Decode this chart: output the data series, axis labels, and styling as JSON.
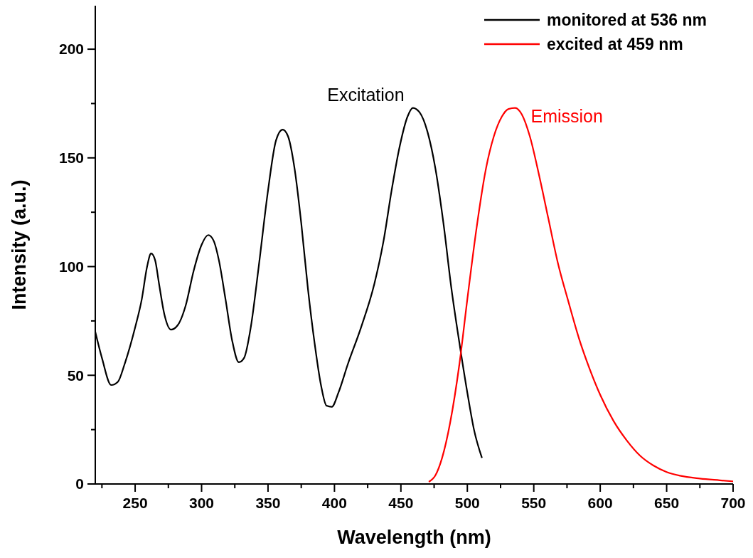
{
  "chart_data": {
    "type": "line",
    "xlabel": "Wavelength (nm)",
    "ylabel": "Intensity (a.u.)",
    "xlim": [
      220,
      700
    ],
    "ylim": [
      0,
      220
    ],
    "xticks": [
      {
        "value": 225,
        "label": null
      },
      250,
      {
        "value": 275,
        "label": null
      },
      300,
      {
        "value": 325,
        "label": null
      },
      350,
      {
        "value": 375,
        "label": null
      },
      400,
      {
        "value": 425,
        "label": null
      },
      450,
      {
        "value": 475,
        "label": null
      },
      500,
      {
        "value": 525,
        "label": null
      },
      550,
      {
        "value": 575,
        "label": null
      },
      600,
      {
        "value": 625,
        "label": null
      },
      650,
      {
        "value": 675,
        "label": null
      },
      700
    ],
    "yticks": [
      0,
      {
        "value": 25,
        "label": null
      },
      50,
      {
        "value": 75,
        "label": null
      },
      100,
      {
        "value": 125,
        "label": null
      },
      150,
      {
        "value": 175,
        "label": null
      },
      200
    ],
    "legend": "top right",
    "grid": false,
    "marker": "none",
    "line_style": "solid",
    "series": [
      {
        "name": "monitored at 536 nm",
        "color": "#000000",
        "x": [
          220,
          225,
          232,
          237,
          242,
          250,
          255,
          259,
          262,
          265,
          268,
          272,
          277,
          282,
          288,
          294,
          300,
          305,
          309,
          313,
          318,
          323,
          328,
          332,
          337,
          343,
          350,
          356,
          361,
          365,
          370,
          375,
          380,
          385,
          390,
          394,
          398,
          403,
          410,
          420,
          430,
          437,
          443,
          449,
          455,
          459,
          464,
          470,
          476,
          482,
          488,
          494,
          500,
          505,
          511
        ],
        "values": [
          70,
          58,
          45.5,
          47,
          55,
          72,
          85,
          100,
          106,
          103,
          92,
          78,
          71,
          73,
          82,
          98,
          110,
          114.5,
          112,
          103,
          85,
          66,
          56,
          58,
          72,
          100,
          135,
          158,
          163,
          160,
          145,
          120,
          90,
          65,
          45,
          36,
          35.5,
          42,
          55,
          72,
          92,
          112,
          135,
          155,
          169,
          173,
          171,
          162,
          145,
          120,
          90,
          65,
          42,
          25,
          12
        ]
      },
      {
        "name": "excited at 459 nm",
        "color": "#ff0000",
        "x": [
          471,
          476,
          481,
          487,
          494,
          500,
          507,
          514,
          520,
          526,
          531,
          536,
          541,
          547,
          554,
          561,
          568,
          576,
          584,
          592,
          600,
          610,
          620,
          630,
          640,
          650,
          660,
          675,
          690,
          700
        ],
        "values": [
          1,
          4,
          12,
          28,
          55,
          85,
          118,
          145,
          160,
          169,
          172.5,
          173,
          170,
          160,
          142,
          122,
          102,
          84,
          67,
          53,
          41,
          29,
          20,
          13,
          8.5,
          5.5,
          3.8,
          2.5,
          1.7,
          1.2
        ]
      }
    ],
    "annotations": [
      "Excitation",
      "Emission"
    ]
  }
}
